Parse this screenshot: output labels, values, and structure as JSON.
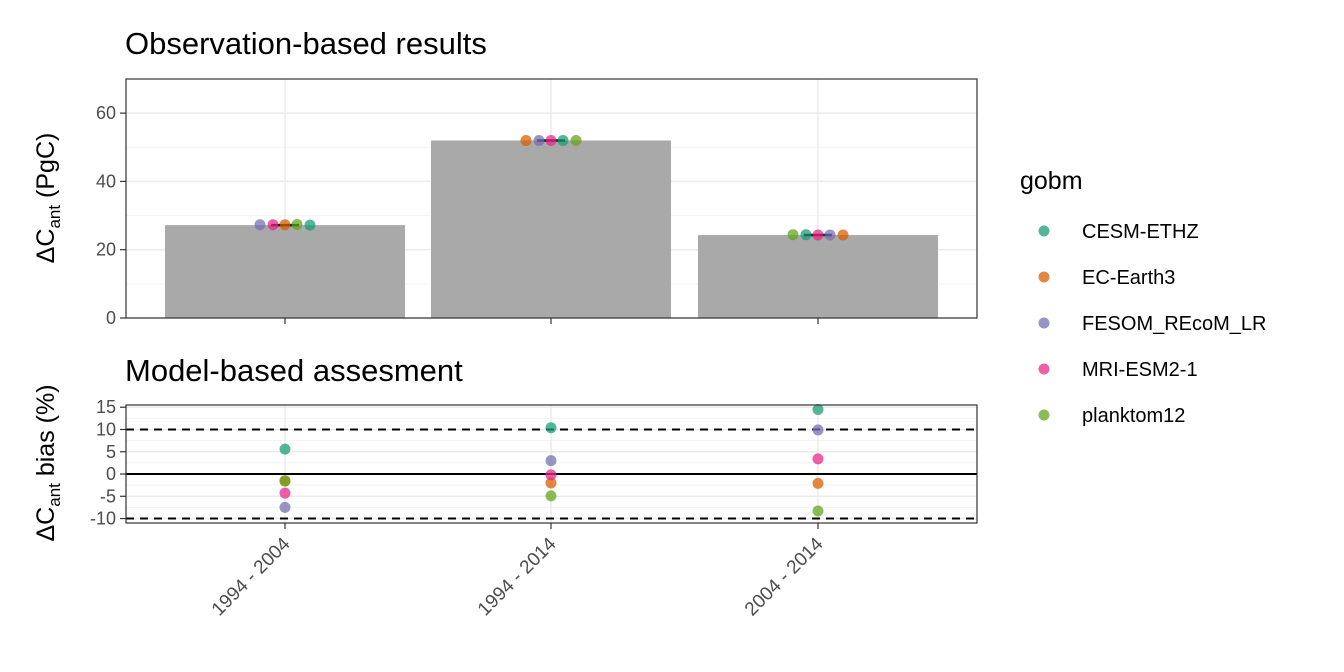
{
  "chart_data": [
    {
      "type": "bar",
      "title": "Observation-based results",
      "ylabel": {
        "prefix": "ΔC",
        "sub": "ant",
        "suffix": " (PgC)"
      },
      "categories": [
        "1994 - 2004",
        "1994 - 2014",
        "2004 - 2014"
      ],
      "values": [
        27.2,
        52.0,
        24.3
      ],
      "ylim": [
        0,
        70
      ],
      "yticks": [
        0,
        20,
        40,
        60
      ],
      "bar_color": "#a9a9a9",
      "grid": true,
      "points": [
        {
          "category": "1994 - 2004",
          "gobm": "FESOM_REcoM_LR",
          "value": 27.3
        },
        {
          "category": "1994 - 2004",
          "gobm": "MRI-ESM2-1",
          "value": 27.3
        },
        {
          "category": "1994 - 2004",
          "gobm": "EC-Earth3",
          "value": 27.3
        },
        {
          "category": "1994 - 2004",
          "gobm": "planktom12",
          "value": 27.4
        },
        {
          "category": "1994 - 2004",
          "gobm": "CESM-ETHZ",
          "value": 27.2
        },
        {
          "category": "1994 - 2014",
          "gobm": "EC-Earth3",
          "value": 52.0
        },
        {
          "category": "1994 - 2014",
          "gobm": "FESOM_REcoM_LR",
          "value": 52.0
        },
        {
          "category": "1994 - 2014",
          "gobm": "MRI-ESM2-1",
          "value": 52.0
        },
        {
          "category": "1994 - 2014",
          "gobm": "CESM-ETHZ",
          "value": 52.0
        },
        {
          "category": "1994 - 2014",
          "gobm": "planktom12",
          "value": 52.0
        },
        {
          "category": "2004 - 2014",
          "gobm": "planktom12",
          "value": 24.4
        },
        {
          "category": "2004 - 2014",
          "gobm": "CESM-ETHZ",
          "value": 24.4
        },
        {
          "category": "2004 - 2014",
          "gobm": "MRI-ESM2-1",
          "value": 24.3
        },
        {
          "category": "2004 - 2014",
          "gobm": "FESOM_REcoM_LR",
          "value": 24.3
        },
        {
          "category": "2004 - 2014",
          "gobm": "EC-Earth3",
          "value": 24.3
        }
      ]
    },
    {
      "type": "scatter",
      "title": "Model-based assesment",
      "ylabel": {
        "prefix": "ΔC",
        "sub": "ant",
        "suffix": " bias (%)"
      },
      "categories": [
        "1994 - 2004",
        "1994 - 2014",
        "2004 - 2014"
      ],
      "ylim": [
        -11,
        15.5
      ],
      "yticks": [
        -10,
        -5,
        0,
        5,
        10,
        15
      ],
      "reference_lines": [
        {
          "value": 0,
          "style": "solid"
        },
        {
          "value": 10,
          "style": "dashed"
        },
        {
          "value": -10,
          "style": "dashed"
        }
      ],
      "grid": true,
      "series": [
        {
          "name": "CESM-ETHZ",
          "values": [
            5.6,
            10.4,
            14.5
          ]
        },
        {
          "name": "EC-Earth3",
          "values": [
            -1.5,
            -2.0,
            -2.1
          ]
        },
        {
          "name": "FESOM_REcoM_LR",
          "values": [
            -7.5,
            3.0,
            9.9
          ]
        },
        {
          "name": "MRI-ESM2-1",
          "values": [
            -4.3,
            -0.2,
            3.4
          ]
        },
        {
          "name": "planktom12",
          "values": [
            -1.6,
            -4.9,
            -8.3
          ]
        }
      ]
    }
  ],
  "legend": {
    "title": "gobm",
    "position": "right",
    "items": [
      {
        "label": "CESM-ETHZ",
        "color": "#1b9e77"
      },
      {
        "label": "EC-Earth3",
        "color": "#d95f02"
      },
      {
        "label": "FESOM_REcoM_LR",
        "color": "#7570b3"
      },
      {
        "label": "MRI-ESM2-1",
        "color": "#e7298a"
      },
      {
        "label": "planktom12",
        "color": "#66a61e"
      }
    ]
  }
}
